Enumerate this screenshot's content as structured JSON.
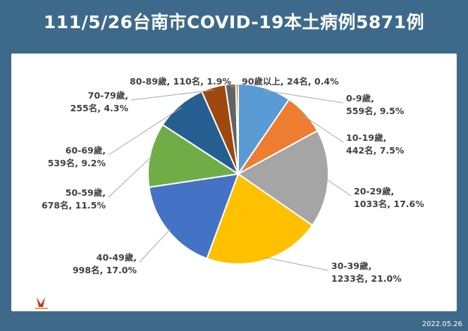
{
  "title": "111/5/26台南市COVID-19本土病例5871例",
  "footer_date": "2022.05.26",
  "logo_text": "臺南",
  "chart_data": {
    "type": "pie",
    "unit": "名",
    "categories": [
      "0-9歲",
      "10-19歲",
      "20-29歲",
      "30-39歲",
      "40-49歲",
      "50-59歲",
      "60-69歲",
      "70-79歲",
      "80-89歲",
      "90歲以上"
    ],
    "values": [
      559,
      442,
      1033,
      1233,
      998,
      678,
      539,
      255,
      110,
      24
    ],
    "percentages": [
      "9.5%",
      "7.5%",
      "17.6%",
      "21.0%",
      "17.0%",
      "11.5%",
      "9.2%",
      "4.3%",
      "1.9%",
      "0.4%"
    ],
    "labels": [
      {
        "line1": "0-9歲,",
        "line2": "559名, 9.5%"
      },
      {
        "line1": "10-19歲,",
        "line2": "442名, 7.5%"
      },
      {
        "line1": "20-29歲,",
        "line2": "1033名, 17.6%"
      },
      {
        "line1": "30-39歲,",
        "line2": "1233名, 21.0%"
      },
      {
        "line1": "40-49歲,",
        "line2": "998名, 17.0%"
      },
      {
        "line1": "50-59歲,",
        "line2": "678名, 11.5%"
      },
      {
        "line1": "60-69歲,",
        "line2": "539名, 9.2%"
      },
      {
        "line1": "70-79歲,",
        "line2": "255名, 4.3%"
      },
      {
        "line1": "80-89歲, 110名, 1.9%",
        "line2": ""
      },
      {
        "line1": "90歲以上, 24名, 0.4%",
        "line2": ""
      }
    ],
    "colors": [
      "#5b9bd5",
      "#ed7d31",
      "#a5a5a5",
      "#ffc000",
      "#4472c4",
      "#70ad47",
      "#255e91",
      "#9e480e",
      "#636363",
      "#997300"
    ],
    "start_angle_deg": 0,
    "direction": "clockwise"
  }
}
